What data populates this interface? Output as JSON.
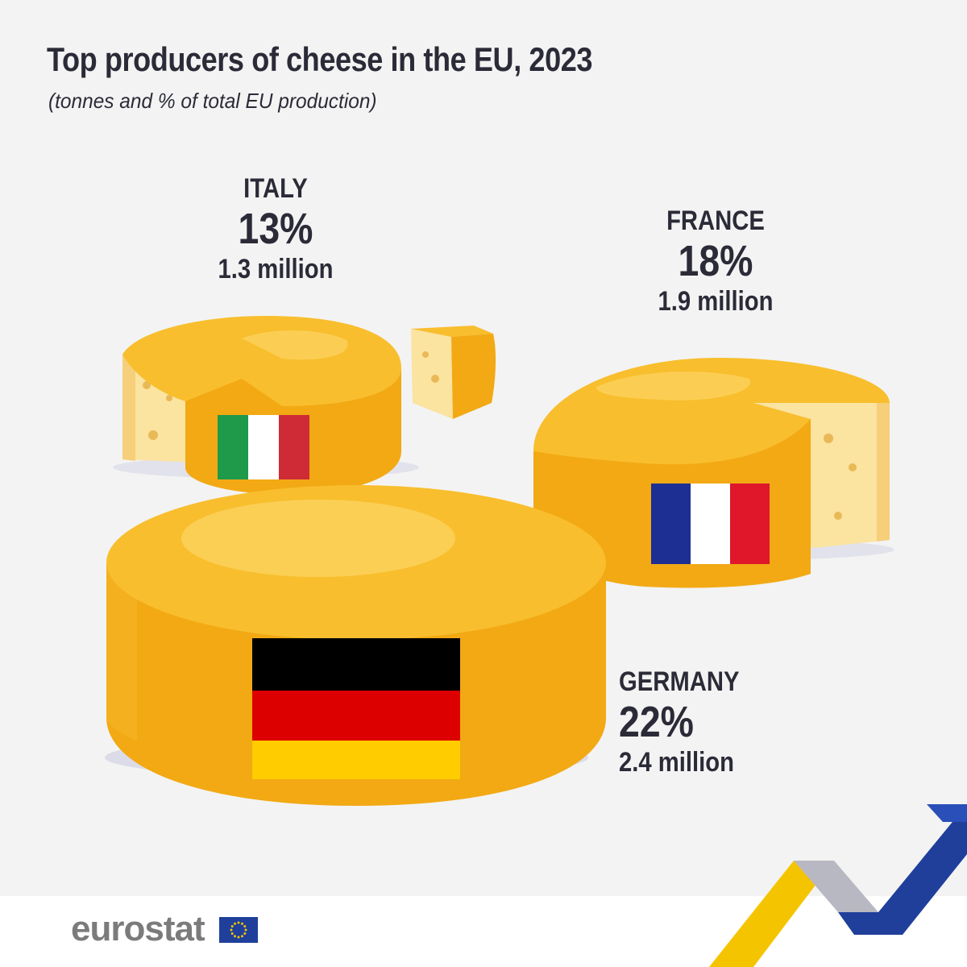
{
  "title": "Top producers of cheese in the EU, 2023",
  "subtitle": "(tonnes and % of total EU production)",
  "brand": "eurostat",
  "chart_data": {
    "type": "other",
    "series": [
      {
        "country": "ITALY",
        "percent": 13,
        "percent_label": "13%",
        "tonnes_label": "1.3 million",
        "tonnes": 1300000
      },
      {
        "country": "FRANCE",
        "percent": 18,
        "percent_label": "18%",
        "tonnes_label": "1.9 million",
        "tonnes": 1900000
      },
      {
        "country": "GERMANY",
        "percent": 22,
        "percent_label": "22%",
        "tonnes_label": "2.4 million",
        "tonnes": 2400000
      }
    ]
  },
  "colors": {
    "background": "#f3f3f3",
    "cheese_rind": "#f6b21b",
    "cheese_top": "#f9c333",
    "cheese_inside": "#fbe6a0",
    "eu_blue": "#1f3f9b",
    "eu_yellow": "#f5c400"
  },
  "icons": {
    "cheese": "cheese-wheel-icon",
    "logo": "eu-flag-icon"
  }
}
